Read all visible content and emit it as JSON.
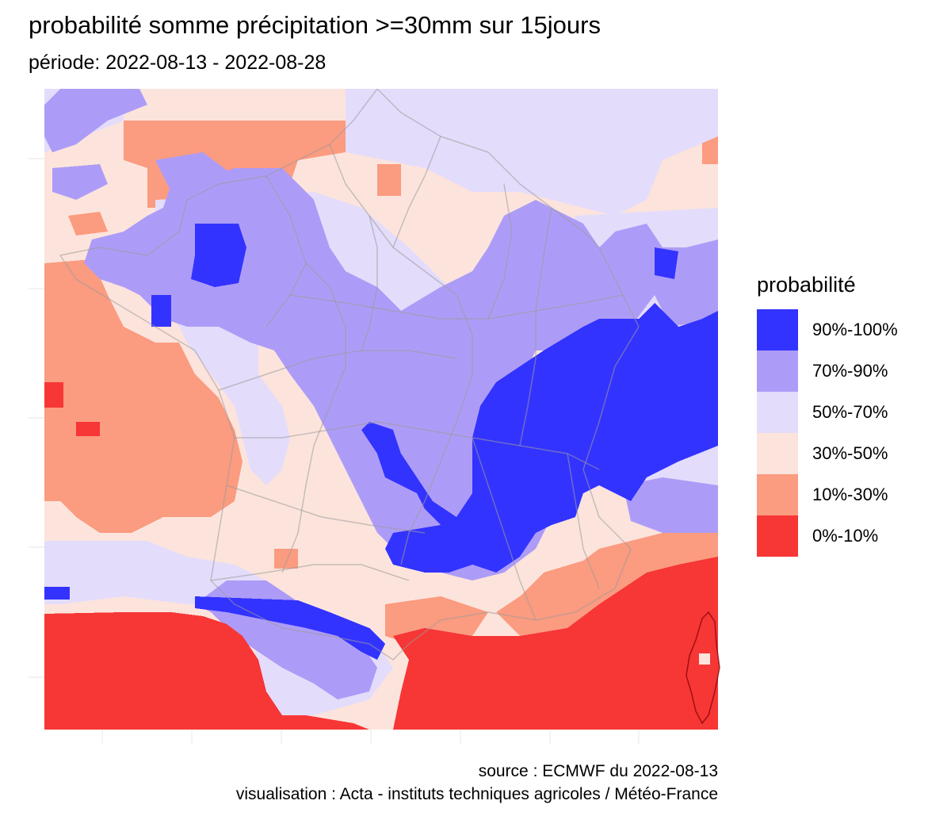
{
  "title": "probabilité somme précipitation >=30mm sur 15jours",
  "subtitle": "période: 2022-08-13 - 2022-08-28",
  "legend": {
    "title": "probabilité",
    "classes": [
      {
        "label": "90%-100%",
        "color": "#3333ff"
      },
      {
        "label": "70%-90%",
        "color": "#ad9cf7"
      },
      {
        "label": "50%-70%",
        "color": "#e4dcfb"
      },
      {
        "label": "30%-50%",
        "color": "#fce4dc"
      },
      {
        "label": "10%-30%",
        "color": "#fb9b80"
      },
      {
        "label": "0%-10%",
        "color": "#f73636"
      }
    ]
  },
  "map": {
    "region": "France",
    "boundaries": "departements",
    "grid": true
  },
  "caption": {
    "source": "source : ECMWF du 2022-08-13",
    "credit": "visualisation : Acta - instituts techniques agricoles / Météo-France"
  }
}
